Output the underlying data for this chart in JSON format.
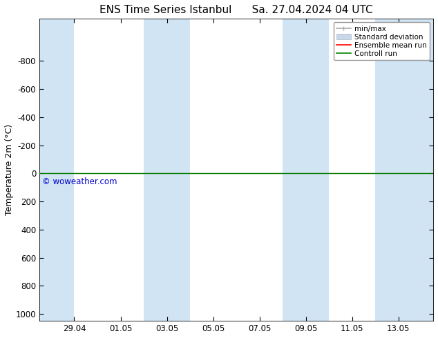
{
  "title_left": "ENS Time Series Istanbul",
  "title_right": "Sa. 27.04.2024 04 UTC",
  "ylabel": "Temperature 2m (°C)",
  "ylim_bottom": 1050,
  "ylim_top": -1100,
  "yticks": [
    -800,
    -600,
    -400,
    -200,
    0,
    200,
    400,
    600,
    800,
    1000
  ],
  "background_color": "#ffffff",
  "plot_bg_color": "#ffffff",
  "shaded_columns_color": "#d0e4f4",
  "watermark": "© woweather.com",
  "watermark_color": "#0000cc",
  "control_run_y": 0,
  "control_run_color": "#008000",
  "ensemble_mean_color": "#ff0000",
  "legend_entries": [
    "min/max",
    "Standard deviation",
    "Ensemble mean run",
    "Controll run"
  ],
  "legend_colors_line": [
    "#aaaaaa",
    "#bbccdd",
    "#ff0000",
    "#008000"
  ],
  "shaded_spans": [
    [
      0,
      1.5
    ],
    [
      4.5,
      6.5
    ],
    [
      10.5,
      12.5
    ],
    [
      14.5,
      17
    ]
  ],
  "x_tick_labels": [
    "29.04",
    "01.05",
    "03.05",
    "05.05",
    "07.05",
    "09.05",
    "11.05",
    "13.05"
  ],
  "x_tick_positions": [
    1.5,
    3.5,
    5.5,
    7.5,
    9.5,
    11.5,
    13.5,
    15.5
  ],
  "xlim": [
    0,
    17
  ],
  "font_size_title": 11,
  "font_size_axis": 8.5,
  "font_size_ylabel": 9,
  "font_size_legend": 7.5,
  "font_size_watermark": 8.5
}
